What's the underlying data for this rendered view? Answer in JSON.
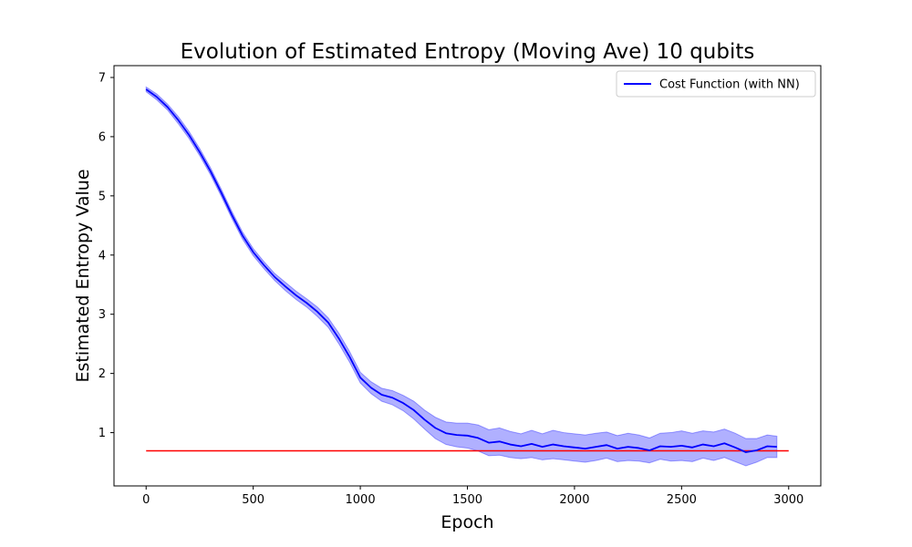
{
  "chart_data": {
    "type": "line",
    "title": "Evolution of Estimated Entropy (Moving Ave) 10 qubits",
    "xlabel": "Epoch",
    "ylabel": "Estimated Entropy Value",
    "xlim": [
      -150,
      3150
    ],
    "ylim": [
      0.1,
      7.2
    ],
    "xticks": [
      0,
      500,
      1000,
      1500,
      2000,
      2500,
      3000
    ],
    "xtick_labels": [
      "0",
      "500",
      "1000",
      "1500",
      "2000",
      "2500",
      "3000"
    ],
    "yticks": [
      1,
      2,
      3,
      4,
      5,
      6,
      7
    ],
    "ytick_labels": [
      "1",
      "2",
      "3",
      "4",
      "5",
      "6",
      "7"
    ],
    "grid": false,
    "legend": {
      "position": "top-right",
      "entries": [
        "Cost Function (with NN)"
      ]
    },
    "series": [
      {
        "name": "Cost Function (with NN)",
        "color": "#0000ff",
        "band_color": "#7b7bff",
        "x": [
          0,
          50,
          100,
          150,
          200,
          250,
          300,
          350,
          400,
          450,
          500,
          550,
          600,
          650,
          700,
          750,
          800,
          850,
          900,
          950,
          1000,
          1050,
          1100,
          1150,
          1200,
          1250,
          1300,
          1350,
          1400,
          1450,
          1500,
          1550,
          1600,
          1650,
          1700,
          1750,
          1800,
          1850,
          1900,
          1950,
          2000,
          2050,
          2100,
          2150,
          2200,
          2250,
          2300,
          2350,
          2400,
          2450,
          2500,
          2550,
          2600,
          2650,
          2700,
          2750,
          2800,
          2850,
          2900,
          2945
        ],
        "y": [
          6.8,
          6.67,
          6.5,
          6.28,
          6.03,
          5.74,
          5.42,
          5.06,
          4.68,
          4.33,
          4.05,
          3.83,
          3.63,
          3.47,
          3.32,
          3.19,
          3.04,
          2.86,
          2.59,
          2.28,
          1.93,
          1.76,
          1.64,
          1.59,
          1.5,
          1.38,
          1.22,
          1.08,
          0.99,
          0.96,
          0.95,
          0.91,
          0.83,
          0.85,
          0.8,
          0.77,
          0.81,
          0.76,
          0.8,
          0.77,
          0.75,
          0.73,
          0.76,
          0.79,
          0.73,
          0.76,
          0.74,
          0.7,
          0.77,
          0.76,
          0.78,
          0.75,
          0.8,
          0.77,
          0.82,
          0.75,
          0.67,
          0.7,
          0.77,
          0.76
        ],
        "lower": [
          6.76,
          6.62,
          6.45,
          6.22,
          5.97,
          5.68,
          5.36,
          5.0,
          4.62,
          4.27,
          3.99,
          3.77,
          3.57,
          3.4,
          3.25,
          3.12,
          2.96,
          2.78,
          2.5,
          2.19,
          1.84,
          1.66,
          1.53,
          1.47,
          1.37,
          1.23,
          1.06,
          0.9,
          0.8,
          0.76,
          0.74,
          0.69,
          0.61,
          0.62,
          0.58,
          0.56,
          0.58,
          0.54,
          0.56,
          0.54,
          0.52,
          0.5,
          0.53,
          0.57,
          0.51,
          0.53,
          0.52,
          0.49,
          0.55,
          0.52,
          0.53,
          0.51,
          0.57,
          0.53,
          0.58,
          0.51,
          0.44,
          0.5,
          0.58,
          0.58
        ],
        "upper": [
          6.84,
          6.72,
          6.55,
          6.34,
          6.09,
          5.8,
          5.48,
          5.12,
          4.74,
          4.39,
          4.11,
          3.89,
          3.69,
          3.54,
          3.39,
          3.26,
          3.12,
          2.94,
          2.68,
          2.37,
          2.02,
          1.86,
          1.75,
          1.71,
          1.63,
          1.53,
          1.38,
          1.26,
          1.18,
          1.16,
          1.16,
          1.13,
          1.05,
          1.08,
          1.02,
          0.98,
          1.04,
          0.98,
          1.04,
          1.0,
          0.98,
          0.96,
          0.99,
          1.01,
          0.95,
          0.99,
          0.96,
          0.91,
          0.99,
          1.0,
          1.03,
          0.99,
          1.03,
          1.01,
          1.06,
          0.99,
          0.9,
          0.9,
          0.96,
          0.94
        ]
      },
      {
        "color": "#ff0000",
        "x": [
          0,
          3000
        ],
        "y": [
          0.693,
          0.693
        ]
      }
    ]
  }
}
